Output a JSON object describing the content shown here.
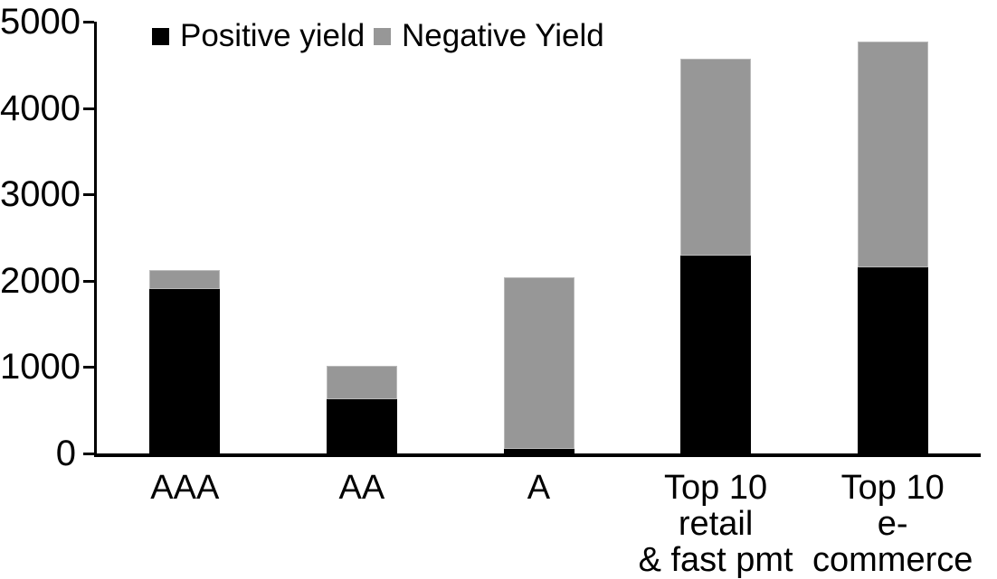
{
  "chart_data": {
    "type": "bar",
    "stacked": true,
    "title": "",
    "xlabel": "",
    "ylabel": "",
    "categories": [
      "AAA",
      "AA",
      "A",
      "Top 10 retail & fast pmt",
      "Top 10 e-commerce"
    ],
    "category_label_lines": [
      [
        "AAA"
      ],
      [
        "AA"
      ],
      [
        "A"
      ],
      [
        "Top 10 retail",
        "& fast pmt"
      ],
      [
        "Top 10",
        "e-commerce"
      ]
    ],
    "series": [
      {
        "name": "Positive yield",
        "color": "#000000",
        "values": [
          1900,
          630,
          50,
          2290,
          2150
        ]
      },
      {
        "name": "Negative Yield",
        "color": "#979797",
        "values": [
          220,
          380,
          1990,
          2280,
          2620
        ]
      }
    ],
    "totals": [
      2120,
      1010,
      2040,
      4570,
      4770
    ],
    "ylim": [
      0,
      5000
    ],
    "yticks": [
      0,
      1000,
      2000,
      3000,
      4000,
      5000
    ],
    "legend_position": "top",
    "grid": false,
    "axis_color": "#000000",
    "background_color": "#ffffff"
  }
}
